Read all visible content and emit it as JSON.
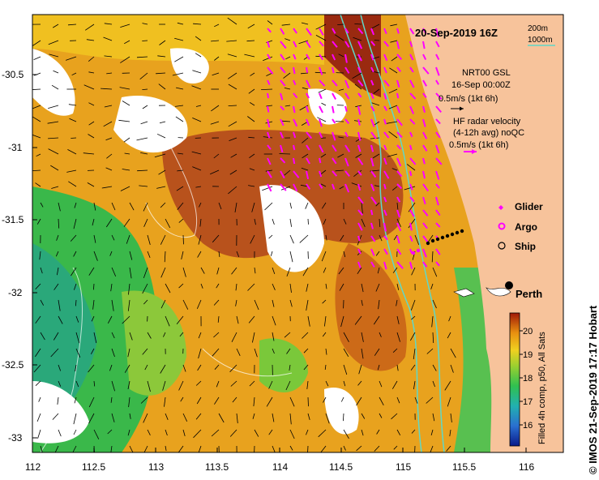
{
  "header": {
    "date_title": "20-Sep-2019 16Z",
    "isobath_labels": [
      "200m",
      "1000m"
    ]
  },
  "legend": {
    "nrt_title": "NRT00 GSL",
    "nrt_date": "16-Sep 00:00Z",
    "nrt_scale": "0.5m/s (1kt 6h)",
    "hf_title": "HF radar velocity",
    "hf_sub": "(4-12h avg) noQC",
    "hf_scale": "0.5m/s (1kt 6h)",
    "markers": [
      {
        "label": "Glider",
        "color": "#ff00ff"
      },
      {
        "label": "Argo",
        "color": "#ff00ff"
      },
      {
        "label": "Ship",
        "color": "#000000"
      }
    ]
  },
  "place": {
    "name": "Perth"
  },
  "axes": {
    "y_ticks": [
      "-30.5",
      "-31",
      "-31.5",
      "-32",
      "-32.5",
      "-33"
    ],
    "x_ticks": [
      "112",
      "112.5",
      "113",
      "113.5",
      "114",
      "114.5",
      "115",
      "115.5",
      "116"
    ]
  },
  "colorbar": {
    "label": "Filled 4h comp, p50, All Sats",
    "ticks": [
      "20",
      "19",
      "18",
      "17",
      "16"
    ]
  },
  "credit": "© IMOS 21-Sep-2019 17:17 Hobart",
  "colors": {
    "land": "#f7c39b",
    "warm": "#b8521c",
    "mid": "#e8a21e",
    "cool": "#3ab84a",
    "isobath": "#5fd8c8",
    "glider": "#ff00ff"
  }
}
